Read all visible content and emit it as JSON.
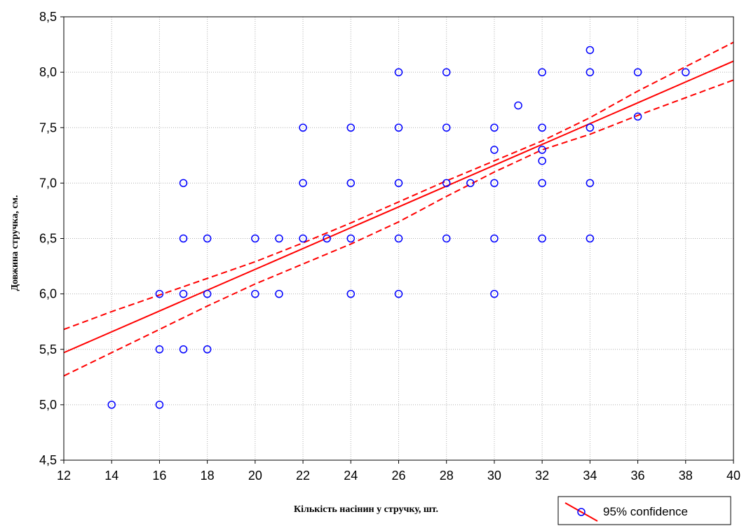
{
  "chart_data": {
    "type": "scatter",
    "title": "",
    "xlabel": "Кількість насінин у стручку, шт.",
    "ylabel": "Довжина стручка, см.",
    "xlim": [
      12,
      40
    ],
    "ylim": [
      4.5,
      8.5
    ],
    "x_ticks": [
      "12",
      "14",
      "16",
      "18",
      "20",
      "22",
      "24",
      "26",
      "28",
      "30",
      "32",
      "34",
      "36",
      "38",
      "40"
    ],
    "y_ticks": [
      "4,5",
      "5,0",
      "5,5",
      "6,0",
      "6,5",
      "7,0",
      "7,5",
      "8,0",
      "8,5"
    ],
    "grid": true,
    "legend": {
      "position": "bottom-right",
      "label": "95% confidence"
    },
    "colors": {
      "points": "#0000ff",
      "fit": "#ff0000",
      "grid": "#b0b0b0"
    },
    "points": [
      [
        14,
        5.0
      ],
      [
        16,
        5.0
      ],
      [
        16,
        5.5
      ],
      [
        17,
        5.5
      ],
      [
        18,
        5.5
      ],
      [
        16,
        6.0
      ],
      [
        17,
        6.0
      ],
      [
        18,
        6.0
      ],
      [
        20,
        6.0
      ],
      [
        21,
        6.0
      ],
      [
        24,
        6.0
      ],
      [
        26,
        6.0
      ],
      [
        30,
        6.0
      ],
      [
        17,
        6.5
      ],
      [
        18,
        6.5
      ],
      [
        20,
        6.5
      ],
      [
        21,
        6.5
      ],
      [
        22,
        6.5
      ],
      [
        23,
        6.5
      ],
      [
        24,
        6.5
      ],
      [
        26,
        6.5
      ],
      [
        28,
        6.5
      ],
      [
        30,
        6.5
      ],
      [
        32,
        6.5
      ],
      [
        34,
        6.5
      ],
      [
        17,
        7.0
      ],
      [
        22,
        7.0
      ],
      [
        24,
        7.0
      ],
      [
        26,
        7.0
      ],
      [
        28,
        7.0
      ],
      [
        29,
        7.0
      ],
      [
        30,
        7.0
      ],
      [
        32,
        7.0
      ],
      [
        34,
        7.0
      ],
      [
        32,
        7.2
      ],
      [
        30,
        7.3
      ],
      [
        32,
        7.3
      ],
      [
        22,
        7.5
      ],
      [
        24,
        7.5
      ],
      [
        26,
        7.5
      ],
      [
        28,
        7.5
      ],
      [
        30,
        7.5
      ],
      [
        32,
        7.5
      ],
      [
        34,
        7.5
      ],
      [
        36,
        7.6
      ],
      [
        31,
        7.7
      ],
      [
        26,
        8.0
      ],
      [
        28,
        8.0
      ],
      [
        32,
        8.0
      ],
      [
        34,
        8.0
      ],
      [
        36,
        8.0
      ],
      [
        38,
        8.0
      ],
      [
        34,
        8.2
      ]
    ],
    "regression": {
      "x": [
        12,
        40
      ],
      "y": [
        5.47,
        8.1
      ]
    },
    "confidence_upper": [
      [
        12,
        5.68
      ],
      [
        14,
        5.84
      ],
      [
        16,
        5.99
      ],
      [
        18,
        6.14
      ],
      [
        20,
        6.29
      ],
      [
        22,
        6.46
      ],
      [
        24,
        6.64
      ],
      [
        26,
        6.83
      ],
      [
        28,
        7.02
      ],
      [
        30,
        7.2
      ],
      [
        32,
        7.38
      ],
      [
        34,
        7.59
      ],
      [
        36,
        7.83
      ],
      [
        38,
        8.05
      ],
      [
        40,
        8.27
      ]
    ],
    "confidence_lower": [
      [
        12,
        5.26
      ],
      [
        14,
        5.47
      ],
      [
        16,
        5.68
      ],
      [
        18,
        5.89
      ],
      [
        20,
        6.09
      ],
      [
        22,
        6.27
      ],
      [
        24,
        6.45
      ],
      [
        26,
        6.65
      ],
      [
        28,
        6.88
      ],
      [
        30,
        7.1
      ],
      [
        32,
        7.3
      ],
      [
        34,
        7.44
      ],
      [
        36,
        7.61
      ],
      [
        38,
        7.77
      ],
      [
        40,
        7.93
      ]
    ]
  }
}
